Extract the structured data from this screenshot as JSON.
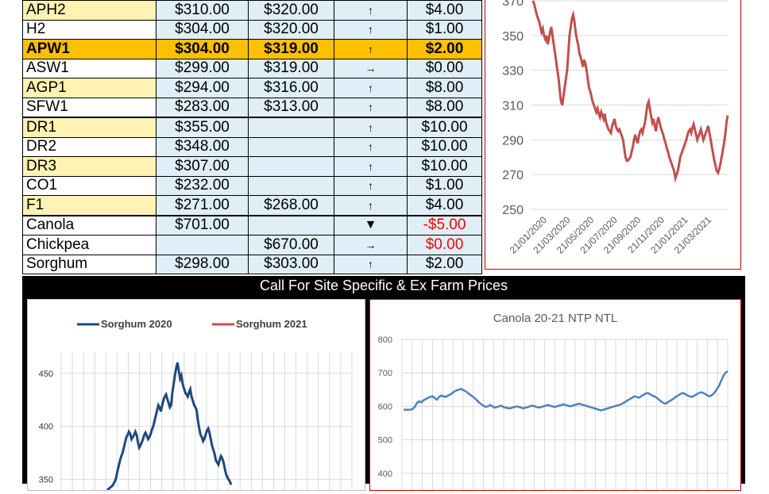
{
  "table": {
    "rows": [
      {
        "grade": "APH2",
        "bid1": "$310.00",
        "bid2": "$320.00",
        "arrow": "↑",
        "change": "$4.00",
        "style": "yellow"
      },
      {
        "grade": "H2",
        "bid1": "$304.00",
        "bid2": "$320.00",
        "arrow": "↑",
        "change": "$1.00",
        "style": "white"
      },
      {
        "grade": "APW1",
        "bid1": "$304.00",
        "bid2": "$319.00",
        "arrow": "↑",
        "change": "$2.00",
        "style": "highlight"
      },
      {
        "grade": "ASW1",
        "bid1": "$299.00",
        "bid2": "$319.00",
        "arrow": "→",
        "change": "$0.00",
        "style": "white"
      },
      {
        "grade": "AGP1",
        "bid1": "$294.00",
        "bid2": "$316.00",
        "arrow": "↑",
        "change": "$8.00",
        "style": "yellow"
      },
      {
        "grade": "SFW1",
        "bid1": "$283.00",
        "bid2": "$313.00",
        "arrow": "↑",
        "change": "$8.00",
        "style": "white"
      },
      {
        "grade": "DR1",
        "bid1": "$355.00",
        "bid2": "",
        "arrow": "↑",
        "change": "$10.00",
        "style": "yellow"
      },
      {
        "grade": "DR2",
        "bid1": "$348.00",
        "bid2": "",
        "arrow": "↑",
        "change": "$10.00",
        "style": "white"
      },
      {
        "grade": "DR3",
        "bid1": "$307.00",
        "bid2": "",
        "arrow": "↑",
        "change": "$10.00",
        "style": "yellow"
      },
      {
        "grade": "CO1",
        "bid1": "$232.00",
        "bid2": "",
        "arrow": "↑",
        "change": "$1.00",
        "style": "white"
      },
      {
        "grade": "F1",
        "bid1": "$271.00",
        "bid2": "$268.00",
        "arrow": "↑",
        "change": "$4.00",
        "style": "yellow"
      },
      {
        "grade": "Canola",
        "bid1": "$701.00",
        "bid2": "",
        "arrow": "▼",
        "change": "-$5.00",
        "style": "white",
        "negative": true
      },
      {
        "grade": "Chickpea",
        "bid1": "",
        "bid2": "$670.00",
        "arrow": "→",
        "change": "$0.00",
        "style": "white",
        "negative": true
      },
      {
        "grade": "Sorghum",
        "bid1": "$298.00",
        "bid2": "$303.00",
        "arrow": "↑",
        "change": "$2.00",
        "style": "white"
      }
    ]
  },
  "banner": "Call For Site Specific & Ex Farm Prices",
  "chart_data": [
    {
      "type": "line",
      "title": "",
      "ylim": [
        250,
        370
      ],
      "yticks": [
        "250",
        "270",
        "290",
        "310",
        "330",
        "350",
        "370"
      ],
      "xticks": [
        "21/01/2020",
        "21/03/2020",
        "21/05/2020",
        "21/07/2020",
        "21/09/2020",
        "21/11/2020",
        "21/01/2021",
        "21/03/2021"
      ],
      "color": "#c0504d",
      "series": [
        {
          "values": [
            370,
            368,
            365,
            362,
            360,
            358,
            355,
            352,
            354,
            350,
            348,
            350,
            345,
            348,
            352,
            355,
            350,
            345,
            340,
            335,
            330,
            325,
            318,
            312,
            310,
            315,
            320,
            325,
            330,
            340,
            350,
            355,
            360,
            362,
            358,
            352,
            348,
            345,
            340,
            338,
            335,
            332,
            336,
            334,
            330,
            325,
            320,
            318,
            315,
            312,
            310,
            308,
            306,
            308,
            305,
            303,
            306,
            304,
            302,
            305,
            300,
            298,
            296,
            295,
            294,
            298,
            300,
            302,
            298,
            296,
            295,
            296,
            294,
            292,
            290,
            285,
            280,
            278,
            278,
            279,
            280,
            283,
            286,
            290,
            293,
            290,
            288,
            292,
            295,
            296,
            294,
            297,
            300,
            305,
            310,
            312,
            308,
            304,
            300,
            302,
            298,
            295,
            300,
            303,
            300,
            297,
            295,
            293,
            290,
            288,
            285,
            283,
            280,
            278,
            276,
            274,
            272,
            268,
            270,
            272,
            276,
            280,
            282,
            284,
            286,
            288,
            290,
            293,
            295,
            296,
            294,
            297,
            299,
            296,
            293,
            290,
            292,
            294,
            296,
            293,
            290,
            292,
            294,
            296,
            298,
            294,
            290,
            286,
            282,
            278,
            275,
            272,
            271,
            273,
            276,
            280,
            284,
            288,
            293,
            300,
            304
          ]
        }
      ]
    },
    {
      "type": "line",
      "title": "",
      "ylim": [
        340,
        470
      ],
      "yticks": [
        "350",
        "400",
        "450"
      ],
      "legend": "top",
      "series": [
        {
          "name": "Sorghum 2020",
          "color": "#1f497d",
          "values": [
            340,
            341,
            342,
            343,
            344,
            346,
            348,
            352,
            358,
            363,
            368,
            372,
            375,
            380,
            385,
            390,
            392,
            395,
            393,
            388,
            390,
            392,
            395,
            392,
            385,
            380,
            382,
            385,
            388,
            392,
            394,
            391,
            388,
            390,
            393,
            397,
            400,
            405,
            410,
            415,
            420,
            418,
            414,
            420,
            425,
            428,
            430,
            426,
            422,
            418,
            420,
            432,
            440,
            448,
            455,
            460,
            452,
            445,
            448,
            440,
            436,
            432,
            430,
            428,
            432,
            435,
            428,
            424,
            420,
            418,
            415,
            405,
            398,
            392,
            390,
            386,
            388,
            392,
            396,
            398,
            394,
            388,
            382,
            378,
            374,
            368,
            366,
            364,
            368,
            372,
            370,
            366,
            360,
            355,
            352,
            350,
            348,
            345
          ]
        },
        {
          "name": "Sorghum 2021",
          "color": "#c0504d",
          "values": []
        }
      ]
    },
    {
      "type": "line",
      "title": "Canola 20-21 NTP NTL",
      "ylim": [
        350,
        800
      ],
      "yticks": [
        "400",
        "500",
        "600",
        "700",
        "800"
      ],
      "color": "#4f81bd",
      "series": [
        {
          "values": [
            590,
            590,
            590,
            590,
            592,
            598,
            610,
            615,
            612,
            618,
            622,
            625,
            628,
            630,
            625,
            620,
            628,
            632,
            630,
            628,
            632,
            635,
            640,
            645,
            648,
            650,
            652,
            648,
            645,
            640,
            635,
            630,
            625,
            618,
            612,
            606,
            602,
            598,
            600,
            604,
            600,
            596,
            598,
            600,
            602,
            598,
            596,
            595,
            594,
            596,
            598,
            600,
            598,
            596,
            594,
            596,
            598,
            600,
            602,
            600,
            598,
            596,
            598,
            600,
            602,
            604,
            602,
            600,
            598,
            600,
            602,
            604,
            606,
            604,
            602,
            600,
            602,
            604,
            606,
            608,
            606,
            604,
            602,
            600,
            598,
            596,
            594,
            592,
            590,
            588,
            590,
            592,
            594,
            596,
            598,
            600,
            602,
            604,
            606,
            610,
            614,
            618,
            622,
            626,
            630,
            628,
            626,
            630,
            634,
            638,
            640,
            636,
            632,
            630,
            626,
            620,
            615,
            610,
            608,
            612,
            616,
            620,
            625,
            630,
            634,
            638,
            640,
            636,
            632,
            630,
            628,
            632,
            636,
            640,
            642,
            640,
            636,
            632,
            630,
            634,
            640,
            650,
            660,
            675,
            690,
            700,
            705
          ]
        }
      ]
    }
  ]
}
